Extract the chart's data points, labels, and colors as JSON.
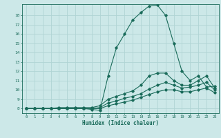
{
  "title": "",
  "xlabel": "Humidex (Indice chaleur)",
  "bg_color": "#cce8e8",
  "line_color": "#1a6b5a",
  "grid_color": "#b0d4d4",
  "xlim": [
    -0.5,
    23.5
  ],
  "ylim": [
    7.5,
    19.2
  ],
  "xticks": [
    0,
    1,
    2,
    3,
    4,
    5,
    6,
    7,
    8,
    9,
    10,
    11,
    12,
    13,
    14,
    15,
    16,
    17,
    18,
    19,
    20,
    21,
    22,
    23
  ],
  "yticks": [
    8,
    9,
    10,
    11,
    12,
    13,
    14,
    15,
    16,
    17,
    18
  ],
  "series": [
    {
      "x": [
        0,
        1,
        2,
        3,
        4,
        5,
        6,
        7,
        8,
        9,
        10,
        11,
        12,
        13,
        14,
        15,
        16,
        17,
        18,
        19,
        20,
        21,
        22,
        23
      ],
      "y": [
        8.0,
        8.0,
        8.0,
        8.0,
        8.0,
        8.0,
        8.0,
        8.0,
        7.9,
        7.8,
        11.5,
        14.5,
        16.0,
        17.5,
        18.3,
        19.0,
        19.1,
        18.0,
        15.0,
        12.0,
        11.0,
        11.5,
        10.3,
        10.4
      ]
    },
    {
      "x": [
        0,
        1,
        2,
        3,
        4,
        5,
        6,
        7,
        8,
        9,
        10,
        11,
        12,
        13,
        14,
        15,
        16,
        17,
        18,
        19,
        20,
        21,
        22,
        23
      ],
      "y": [
        8.0,
        8.0,
        8.0,
        8.0,
        8.1,
        8.1,
        8.1,
        8.1,
        8.1,
        8.3,
        9.0,
        9.3,
        9.6,
        9.9,
        10.5,
        11.5,
        11.8,
        11.8,
        11.0,
        10.5,
        10.5,
        11.0,
        11.5,
        10.2
      ]
    },
    {
      "x": [
        0,
        1,
        2,
        3,
        4,
        5,
        6,
        7,
        8,
        9,
        10,
        11,
        12,
        13,
        14,
        15,
        16,
        17,
        18,
        19,
        20,
        21,
        22,
        23
      ],
      "y": [
        8.0,
        8.0,
        8.0,
        8.0,
        8.0,
        8.0,
        8.0,
        8.0,
        8.0,
        8.1,
        8.6,
        8.8,
        9.1,
        9.3,
        9.6,
        10.1,
        10.5,
        10.8,
        10.5,
        10.2,
        10.3,
        10.5,
        10.8,
        10.0
      ]
    },
    {
      "x": [
        0,
        1,
        2,
        3,
        4,
        5,
        6,
        7,
        8,
        9,
        10,
        11,
        12,
        13,
        14,
        15,
        16,
        17,
        18,
        19,
        20,
        21,
        22,
        23
      ],
      "y": [
        8.0,
        8.0,
        8.0,
        8.0,
        8.0,
        8.0,
        8.0,
        8.0,
        8.0,
        8.0,
        8.3,
        8.5,
        8.7,
        8.9,
        9.2,
        9.5,
        9.8,
        10.0,
        10.0,
        9.8,
        9.8,
        10.0,
        10.2,
        9.7
      ]
    }
  ]
}
